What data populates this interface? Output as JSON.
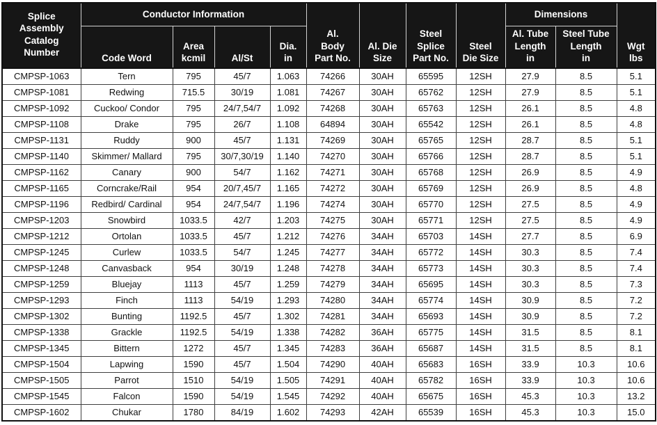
{
  "table": {
    "headers": {
      "catalog": "Splice\nAssembly\nCatalog\nNumber",
      "conductor_info": "Conductor Information",
      "code_word": "Code Word",
      "area": "Area\nkcmil",
      "alst": "Al/St",
      "dia": "Dia.\nin",
      "al_body": "Al.\nBody\nPart No.",
      "al_die": "Al. Die\nSize",
      "steel_splice": "Steel\nSplice\nPart No.",
      "steel_die": "Steel\nDie Size",
      "dimensions": "Dimensions",
      "al_tube": "Al. Tube\nLength\nin",
      "steel_tube": "Steel Tube\nLength\nin",
      "wgt": "Wgt\nlbs"
    },
    "column_keys": [
      "catalog_number",
      "code_word",
      "area_kcmil",
      "al_st",
      "dia_in",
      "al_body_part_no",
      "al_die_size",
      "steel_splice_part_no",
      "steel_die_size",
      "al_tube_length_in",
      "steel_tube_length_in",
      "wgt_lbs"
    ],
    "rows": [
      [
        "CMPSP-1063",
        "Tern",
        "795",
        "45/7",
        "1.063",
        "74266",
        "30AH",
        "65595",
        "12SH",
        "27.9",
        "8.5",
        "5.1"
      ],
      [
        "CMPSP-1081",
        "Redwing",
        "715.5",
        "30/19",
        "1.081",
        "74267",
        "30AH",
        "65762",
        "12SH",
        "27.9",
        "8.5",
        "5.1"
      ],
      [
        "CMPSP-1092",
        "Cuckoo/ Condor",
        "795",
        "24/7,54/7",
        "1.092",
        "74268",
        "30AH",
        "65763",
        "12SH",
        "26.1",
        "8.5",
        "4.8"
      ],
      [
        "CMPSP-1108",
        "Drake",
        "795",
        "26/7",
        "1.108",
        "64894",
        "30AH",
        "65542",
        "12SH",
        "26.1",
        "8.5",
        "4.8"
      ],
      [
        "CMPSP-1131",
        "Ruddy",
        "900",
        "45/7",
        "1.131",
        "74269",
        "30AH",
        "65765",
        "12SH",
        "28.7",
        "8.5",
        "5.1"
      ],
      [
        "CMPSP-1140",
        "Skimmer/ Mallard",
        "795",
        "30/7,30/19",
        "1.140",
        "74270",
        "30AH",
        "65766",
        "12SH",
        "28.7",
        "8.5",
        "5.1"
      ],
      [
        "CMPSP-1162",
        "Canary",
        "900",
        "54/7",
        "1.162",
        "74271",
        "30AH",
        "65768",
        "12SH",
        "26.9",
        "8.5",
        "4.9"
      ],
      [
        "CMPSP-1165",
        "Corncrake/Rail",
        "954",
        "20/7,45/7",
        "1.165",
        "74272",
        "30AH",
        "65769",
        "12SH",
        "26.9",
        "8.5",
        "4.8"
      ],
      [
        "CMPSP-1196",
        "Redbird/ Cardinal",
        "954",
        "24/7,54/7",
        "1.196",
        "74274",
        "30AH",
        "65770",
        "12SH",
        "27.5",
        "8.5",
        "4.9"
      ],
      [
        "CMPSP-1203",
        "Snowbird",
        "1033.5",
        "42/7",
        "1.203",
        "74275",
        "30AH",
        "65771",
        "12SH",
        "27.5",
        "8.5",
        "4.9"
      ],
      [
        "CMPSP-1212",
        "Ortolan",
        "1033.5",
        "45/7",
        "1.212",
        "74276",
        "34AH",
        "65703",
        "14SH",
        "27.7",
        "8.5",
        "6.9"
      ],
      [
        "CMPSP-1245",
        "Curlew",
        "1033.5",
        "54/7",
        "1.245",
        "74277",
        "34AH",
        "65772",
        "14SH",
        "30.3",
        "8.5",
        "7.4"
      ],
      [
        "CMPSP-1248",
        "Canvasback",
        "954",
        "30/19",
        "1.248",
        "74278",
        "34AH",
        "65773",
        "14SH",
        "30.3",
        "8.5",
        "7.4"
      ],
      [
        "CMPSP-1259",
        "Bluejay",
        "1113",
        "45/7",
        "1.259",
        "74279",
        "34AH",
        "65695",
        "14SH",
        "30.3",
        "8.5",
        "7.3"
      ],
      [
        "CMPSP-1293",
        "Finch",
        "1113",
        "54/19",
        "1.293",
        "74280",
        "34AH",
        "65774",
        "14SH",
        "30.9",
        "8.5",
        "7.2"
      ],
      [
        "CMPSP-1302",
        "Bunting",
        "1192.5",
        "45/7",
        "1.302",
        "74281",
        "34AH",
        "65693",
        "14SH",
        "30.9",
        "8.5",
        "7.2"
      ],
      [
        "CMPSP-1338",
        "Grackle",
        "1192.5",
        "54/19",
        "1.338",
        "74282",
        "36AH",
        "65775",
        "14SH",
        "31.5",
        "8.5",
        "8.1"
      ],
      [
        "CMPSP-1345",
        "Bittern",
        "1272",
        "45/7",
        "1.345",
        "74283",
        "36AH",
        "65687",
        "14SH",
        "31.5",
        "8.5",
        "8.1"
      ],
      [
        "CMPSP-1504",
        "Lapwing",
        "1590",
        "45/7",
        "1.504",
        "74290",
        "40AH",
        "65683",
        "16SH",
        "33.9",
        "10.3",
        "10.6"
      ],
      [
        "CMPSP-1505",
        "Parrot",
        "1510",
        "54/19",
        "1.505",
        "74291",
        "40AH",
        "65782",
        "16SH",
        "33.9",
        "10.3",
        "10.6"
      ],
      [
        "CMPSP-1545",
        "Falcon",
        "1590",
        "54/19",
        "1.545",
        "74292",
        "40AH",
        "65675",
        "16SH",
        "45.3",
        "10.3",
        "13.2"
      ],
      [
        "CMPSP-1602",
        "Chukar",
        "1780",
        "84/19",
        "1.602",
        "74293",
        "42AH",
        "65539",
        "16SH",
        "45.3",
        "10.3",
        "15.0"
      ]
    ],
    "colors": {
      "header_bg": "#161616",
      "header_text": "#ffffff",
      "header_divider": "#d2d2d2",
      "body_border": "#3f3f3f",
      "outer_border": "#101010"
    }
  }
}
